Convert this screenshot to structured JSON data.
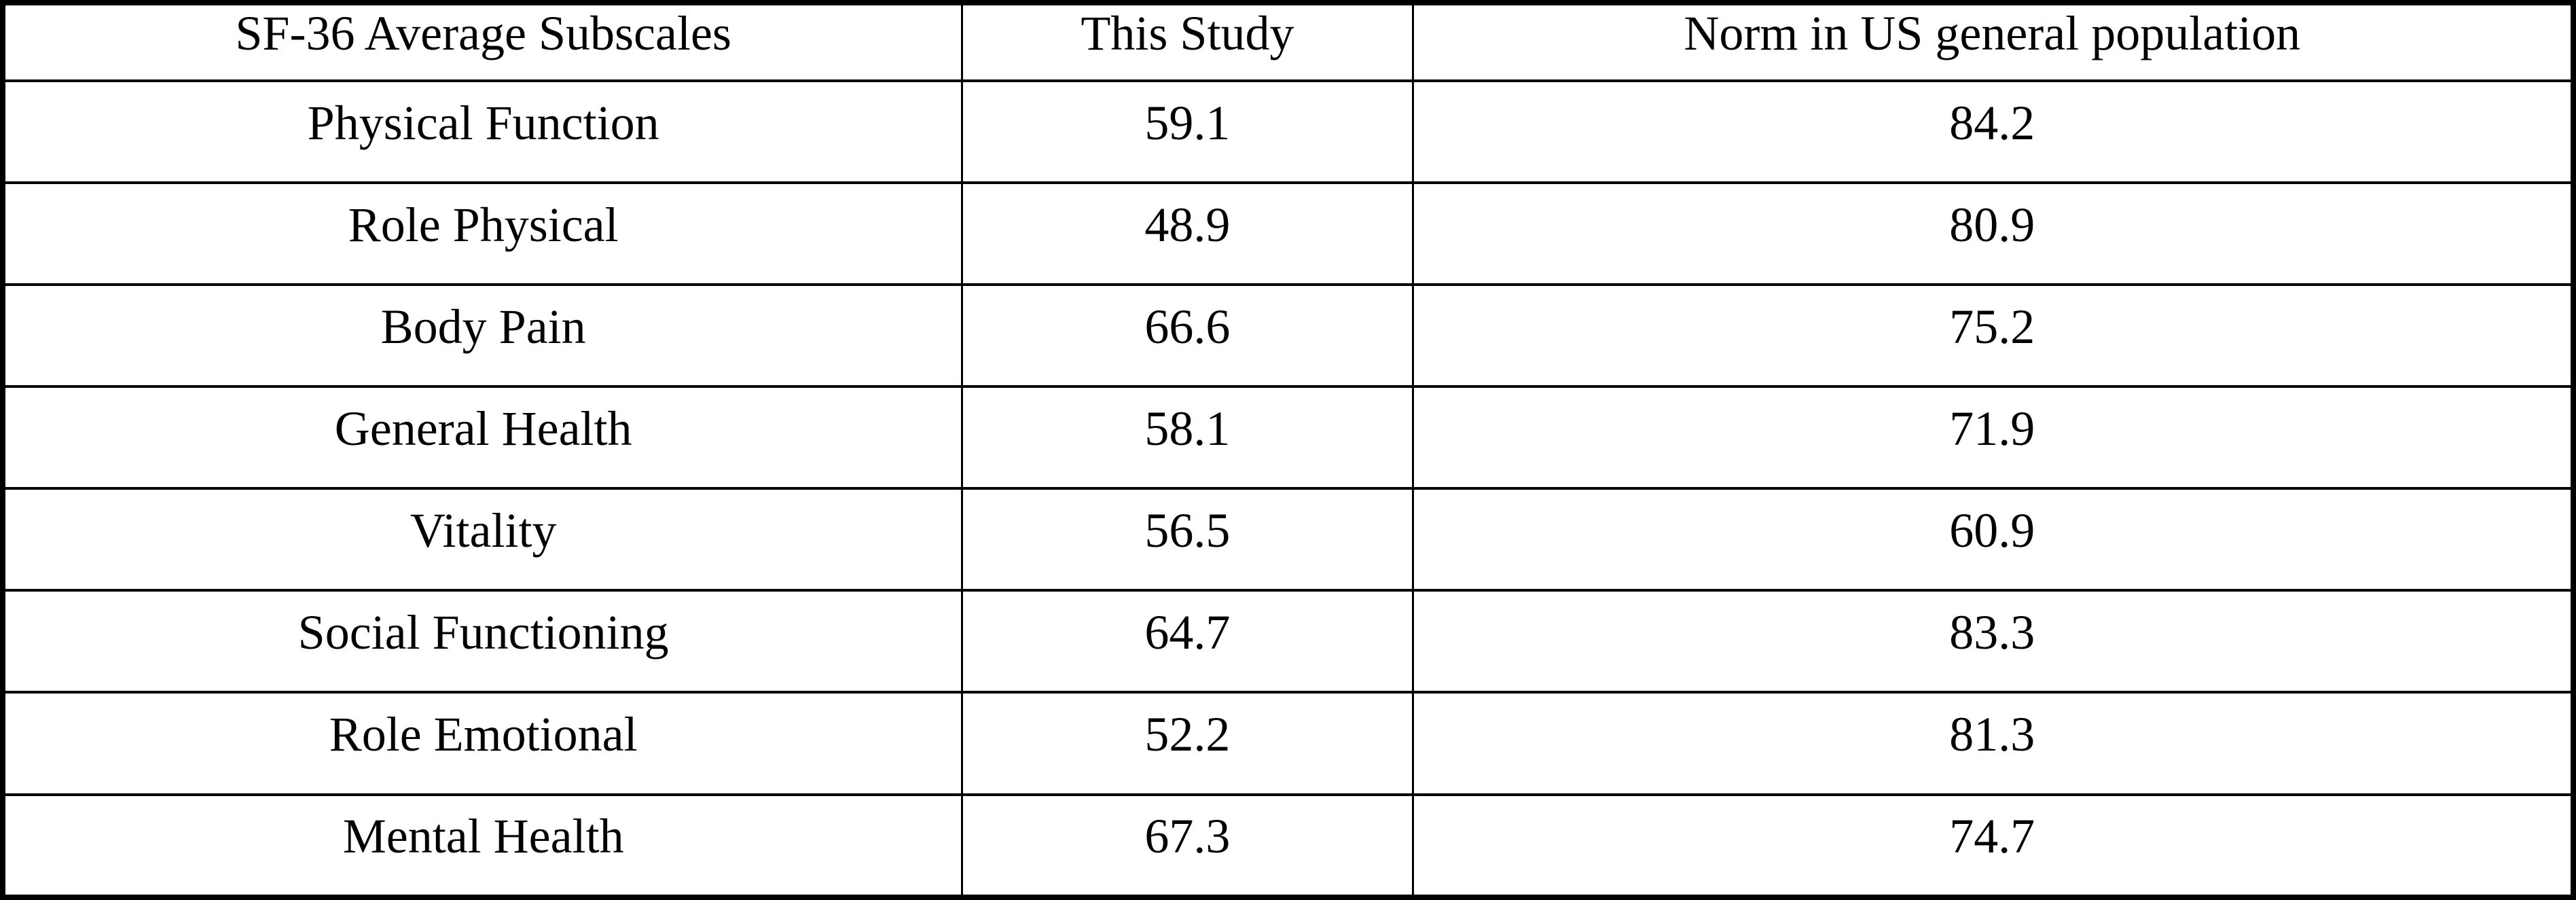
{
  "table": {
    "columns": [
      {
        "label": "SF-36 Average Subscales"
      },
      {
        "label": "This Study"
      },
      {
        "label": "Norm in US general population"
      }
    ],
    "rows": [
      [
        "Physical Function",
        "59.1",
        "84.2"
      ],
      [
        "Role Physical",
        "48.9",
        "80.9"
      ],
      [
        "Body Pain",
        "66.6",
        "75.2"
      ],
      [
        "General Health",
        "58.1",
        "71.9"
      ],
      [
        "Vitality",
        "56.5",
        "60.9"
      ],
      [
        "Social Functioning",
        "64.7",
        "83.3"
      ],
      [
        "Role Emotional",
        "52.2",
        "81.3"
      ],
      [
        "Mental Health",
        "67.3",
        "74.7"
      ]
    ]
  },
  "chart_data": {
    "type": "table",
    "title": "SF-36 Average Subscales",
    "categories": [
      "Physical Function",
      "Role Physical",
      "Body Pain",
      "General Health",
      "Vitality",
      "Social Functioning",
      "Role Emotional",
      "Mental Health"
    ],
    "series": [
      {
        "name": "This Study",
        "values": [
          59.1,
          48.9,
          66.6,
          58.1,
          56.5,
          64.7,
          52.2,
          67.3
        ]
      },
      {
        "name": "Norm in US general population",
        "values": [
          84.2,
          80.9,
          75.2,
          71.9,
          60.9,
          83.3,
          81.3,
          74.7
        ]
      }
    ]
  },
  "colors": {
    "border": "#000000",
    "background": "#ffffff",
    "text": "#000000"
  }
}
